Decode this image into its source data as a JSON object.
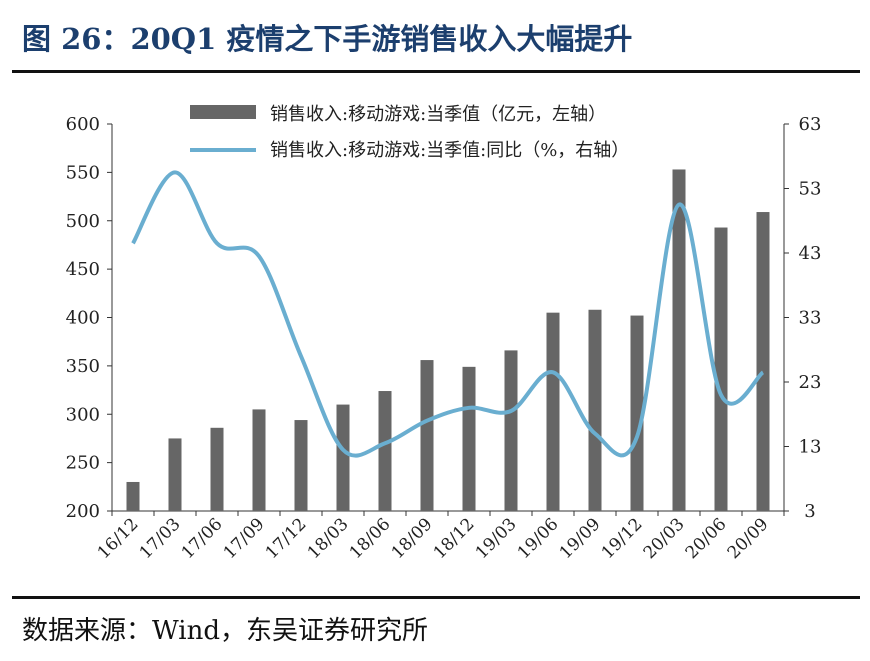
{
  "header": {
    "title": "图 26：20Q1 疫情之下手游销售收入大幅提升"
  },
  "footer": {
    "source": "数据来源：Wind，东吴证券研究所"
  },
  "colors": {
    "bar": "#666666",
    "line": "#6aaed0",
    "title": "#1c3f6e"
  },
  "chart_data": {
    "type": "bar+line",
    "categories": [
      "16/12",
      "17/03",
      "17/06",
      "17/09",
      "17/12",
      "18/03",
      "18/06",
      "18/09",
      "18/12",
      "19/03",
      "19/06",
      "19/09",
      "19/12",
      "20/03",
      "20/06",
      "20/09"
    ],
    "series": [
      {
        "name": "销售收入:移动游戏:当季值（亿元，左轴）",
        "type": "bar",
        "axis": "left",
        "values": [
          230,
          275,
          286,
          305,
          294,
          310,
          324,
          356,
          349,
          366,
          405,
          408,
          402,
          553,
          493,
          509
        ]
      },
      {
        "name": "销售收入:移动游戏:当季值:同比（%，右轴）",
        "type": "line",
        "axis": "right",
        "values": [
          44.5,
          55.5,
          44.5,
          42.5,
          27,
          12.5,
          13.5,
          17,
          19,
          18.5,
          24.5,
          15,
          14.5,
          50.5,
          21,
          24.5
        ]
      }
    ],
    "left_axis": {
      "min": 200,
      "max": 600,
      "ticks": [
        200,
        250,
        300,
        350,
        400,
        450,
        500,
        550,
        600
      ]
    },
    "right_axis": {
      "min": 3,
      "max": 63,
      "ticks": [
        3,
        13,
        23,
        33,
        43,
        53,
        63
      ]
    },
    "legend_position": "top-center",
    "grid": false
  }
}
